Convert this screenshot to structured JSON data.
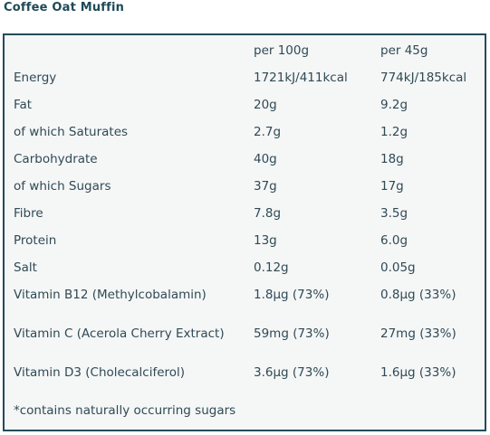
{
  "title": "Coffee Oat Muffin",
  "colors": {
    "heading": "#1f4a57",
    "text": "#2f4a55",
    "border": "#244c5a",
    "panel_background": "#f5f6f6"
  },
  "table": {
    "headers": [
      "",
      "per 100g",
      "per 45g"
    ],
    "rows": [
      {
        "name": "Energy",
        "per100": "1721kJ/411kcal",
        "perServing": "774kJ/185kcal"
      },
      {
        "name": "Fat",
        "per100": "20g",
        "perServing": "9.2g"
      },
      {
        "name": "of which Saturates",
        "per100": "2.7g",
        "perServing": "1.2g"
      },
      {
        "name": "Carbohydrate",
        "per100": "40g",
        "perServing": "18g"
      },
      {
        "name": "of which Sugars",
        "per100": "37g",
        "perServing": "17g"
      },
      {
        "name": "Fibre",
        "per100": "7.8g",
        "perServing": "3.5g"
      },
      {
        "name": "Protein",
        "per100": "13g",
        "perServing": "6.0g"
      },
      {
        "name": "Salt",
        "per100": "0.12g",
        "perServing": "0.05g"
      },
      {
        "name": "Vitamin B12 (Methylcobalamin)",
        "per100": "1.8µg (73%)",
        "perServing": "0.8µg (33%)"
      },
      {
        "name": "Vitamin C (Acerola Cherry Extract)",
        "per100": "59mg (73%)",
        "perServing": "27mg (33%)"
      },
      {
        "name": "Vitamin D3 (Cholecalciferol)",
        "per100": "3.6µg (73%)",
        "perServing": "1.6µg (33%)"
      },
      {
        "name": "*contains naturally occurring sugars",
        "per100": "",
        "perServing": ""
      }
    ]
  }
}
